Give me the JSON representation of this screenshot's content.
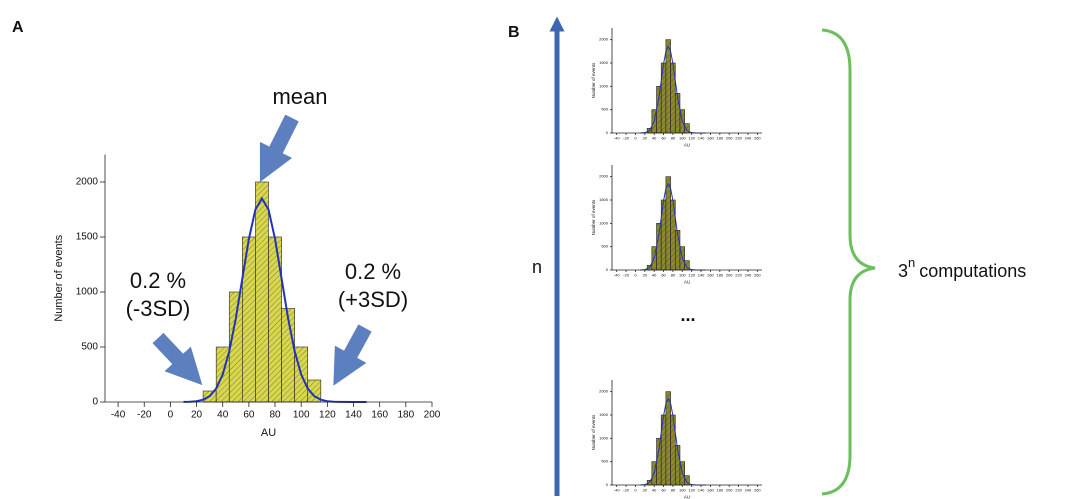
{
  "panels": {
    "a": "A",
    "b": "B"
  },
  "annotations": {
    "mean": "mean",
    "left": [
      "0.2 %",
      "(-3SD)"
    ],
    "right": [
      "0.2 %",
      "(+3SD)"
    ],
    "n": "n",
    "ellipsis": "...",
    "computations_base": "3",
    "computations_exp": "n",
    "computations": "computations"
  },
  "chart_data": [
    {
      "type": "histogram",
      "xlabel": "AU",
      "ylabel": "Number of events",
      "color": "#d9d84c",
      "bins": [
        25,
        35,
        45,
        55,
        65,
        75,
        85,
        95,
        105,
        115
      ],
      "values": [
        100,
        500,
        1000,
        1500,
        2000,
        1500,
        850,
        500,
        200
      ],
      "curve": {
        "color": "#2233bb",
        "x": [
          10,
          15,
          20,
          25,
          30,
          35,
          40,
          45,
          50,
          55,
          60,
          65,
          70,
          75,
          80,
          85,
          90,
          95,
          100,
          105,
          110,
          115,
          120,
          125,
          130,
          140,
          150
        ],
        "y": [
          1,
          2,
          7,
          21,
          53,
          122,
          250,
          461,
          760,
          1122,
          1482,
          1750,
          1850,
          1750,
          1482,
          1122,
          760,
          461,
          250,
          122,
          53,
          21,
          7,
          2,
          1,
          0,
          0
        ]
      },
      "xlim": [
        -50,
        200
      ],
      "xticks": [
        -40,
        -20,
        0,
        20,
        40,
        60,
        80,
        100,
        120,
        140,
        160,
        180,
        200
      ],
      "ylim": [
        0,
        2250
      ],
      "yticks": [
        0,
        500,
        1000,
        1500,
        2000
      ]
    },
    {
      "type": "histogram",
      "xlabel": "AU",
      "ylabel": "Number of events",
      "color": "#8d8a2e",
      "bins": [
        25,
        35,
        45,
        55,
        65,
        75,
        85,
        95,
        105,
        115
      ],
      "values": [
        100,
        500,
        1000,
        1500,
        2000,
        1500,
        850,
        500,
        200
      ],
      "curve": {
        "color": "#2233bb",
        "x": [
          10,
          20,
          30,
          40,
          50,
          55,
          60,
          65,
          70,
          75,
          80,
          85,
          90,
          100,
          110,
          120,
          130,
          150
        ],
        "y": [
          1,
          7,
          53,
          250,
          760,
          1122,
          1482,
          1750,
          1850,
          1750,
          1482,
          1122,
          760,
          250,
          53,
          7,
          1,
          0
        ]
      },
      "xlim": [
        -50,
        270
      ],
      "xticks": [
        -40,
        -20,
        0,
        20,
        40,
        60,
        80,
        100,
        120,
        140,
        160,
        180,
        200,
        220,
        240,
        260
      ],
      "ylim": [
        0,
        2250
      ],
      "yticks": [
        0,
        500,
        1000,
        1500,
        2000
      ]
    },
    {
      "type": "histogram",
      "xlabel": "AU",
      "ylabel": "Number of events",
      "color": "#8d8a2e",
      "bins": [
        25,
        35,
        45,
        55,
        65,
        75,
        85,
        95,
        105,
        115
      ],
      "values": [
        100,
        500,
        1000,
        1500,
        2000,
        1500,
        850,
        500,
        200
      ],
      "curve": {
        "color": "#2233bb",
        "x": [
          10,
          20,
          30,
          40,
          50,
          55,
          60,
          65,
          70,
          75,
          80,
          85,
          90,
          100,
          110,
          120,
          130,
          150
        ],
        "y": [
          1,
          7,
          53,
          250,
          760,
          1122,
          1482,
          1750,
          1850,
          1750,
          1482,
          1122,
          760,
          250,
          53,
          7,
          1,
          0
        ]
      },
      "xlim": [
        -50,
        270
      ],
      "xticks": [
        -40,
        -20,
        0,
        20,
        40,
        60,
        80,
        100,
        120,
        140,
        160,
        180,
        200,
        220,
        240,
        260
      ],
      "ylim": [
        0,
        2250
      ],
      "yticks": [
        0,
        500,
        1000,
        1500,
        2000
      ]
    },
    {
      "type": "histogram",
      "xlabel": "AU",
      "ylabel": "Number of events",
      "color": "#8d8a2e",
      "bins": [
        25,
        35,
        45,
        55,
        65,
        75,
        85,
        95,
        105,
        115
      ],
      "values": [
        100,
        500,
        1000,
        1500,
        2000,
        1500,
        850,
        500,
        200
      ],
      "curve": {
        "color": "#2233bb",
        "x": [
          10,
          20,
          30,
          40,
          50,
          55,
          60,
          65,
          70,
          75,
          80,
          85,
          90,
          100,
          110,
          120,
          130,
          150
        ],
        "y": [
          1,
          7,
          53,
          250,
          760,
          1122,
          1482,
          1750,
          1850,
          1750,
          1482,
          1122,
          760,
          250,
          53,
          7,
          1,
          0
        ]
      },
      "xlim": [
        -50,
        270
      ],
      "xticks": [
        -40,
        -20,
        0,
        20,
        40,
        60,
        80,
        100,
        120,
        140,
        160,
        180,
        200,
        220,
        240,
        260
      ],
      "ylim": [
        0,
        2250
      ],
      "yticks": [
        0,
        500,
        1000,
        1500,
        2000
      ]
    }
  ]
}
